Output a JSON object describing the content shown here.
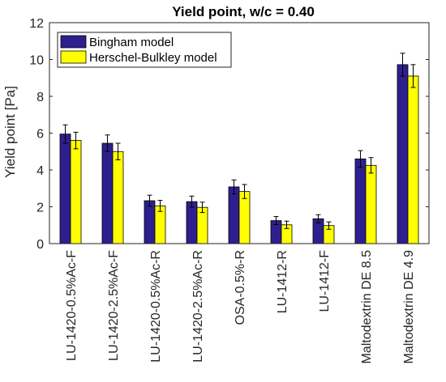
{
  "chart_data": {
    "type": "bar",
    "title": "Yield point, w/c = 0.40",
    "xlabel": "",
    "ylabel": "Yield point [Pa]",
    "ylim": [
      0,
      12
    ],
    "yticks": [
      0,
      2,
      4,
      6,
      8,
      10,
      12
    ],
    "grid": false,
    "legend_position": "top-left",
    "categories": [
      "LU-1420-0.5%Ac-F",
      "LU-1420-2.5%Ac-F",
      "LU-1420-0.5%Ac-R",
      "LU-1420-2.5%Ac-R",
      "OSA-0.5%-R",
      "LU-1412-R",
      "LU-1412-F",
      "Maltodextrin DE 8.5",
      "Maltodextrin DE 4.9"
    ],
    "series": [
      {
        "name": "Bingham model",
        "color": "#2e1f8f",
        "values": [
          5.95,
          5.45,
          2.33,
          2.28,
          3.08,
          1.25,
          1.35,
          4.6,
          9.72
        ],
        "errors": [
          0.5,
          0.45,
          0.3,
          0.3,
          0.38,
          0.22,
          0.22,
          0.45,
          0.62
        ]
      },
      {
        "name": "Herschel-Bulkley model",
        "color": "#ffff00",
        "values": [
          5.6,
          5.0,
          2.05,
          1.97,
          2.83,
          1.02,
          0.98,
          4.25,
          9.1
        ],
        "errors": [
          0.45,
          0.45,
          0.3,
          0.28,
          0.38,
          0.2,
          0.2,
          0.42,
          0.62
        ]
      }
    ]
  }
}
